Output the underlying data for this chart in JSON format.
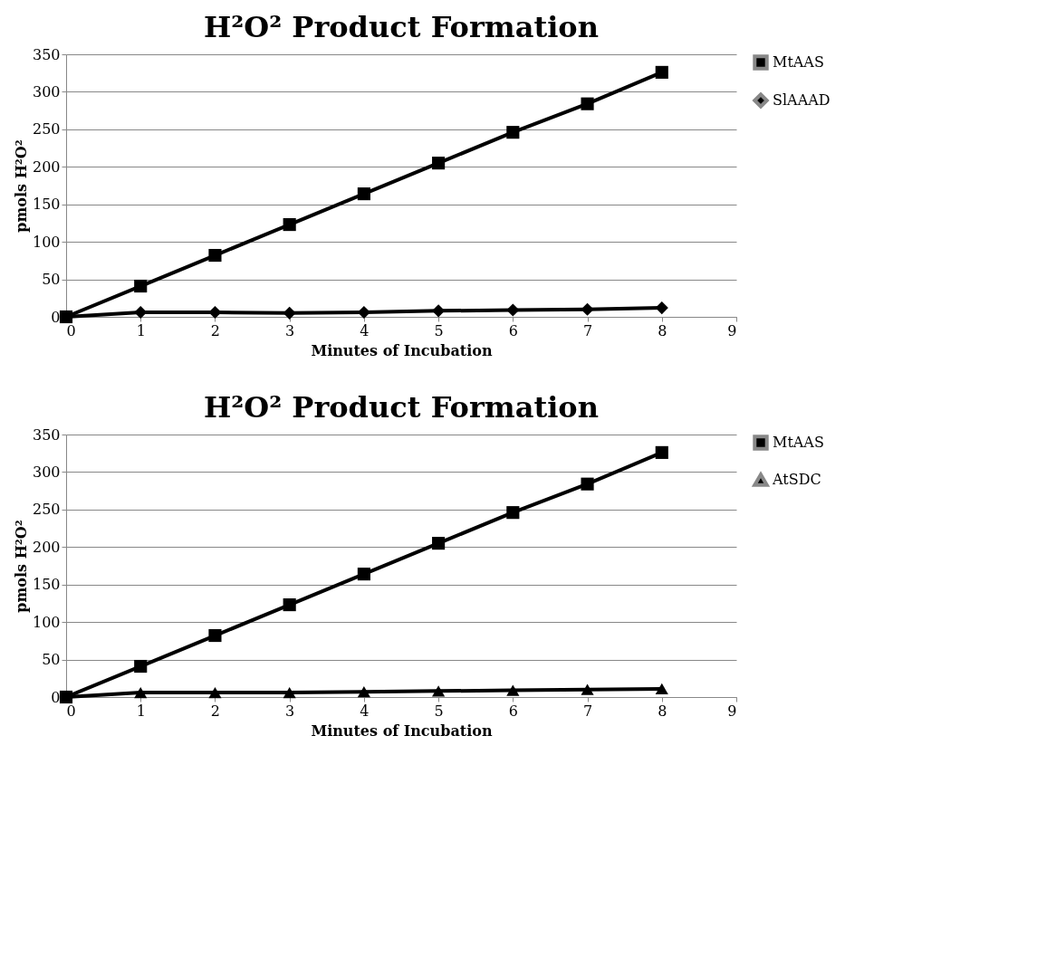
{
  "chart_data": [
    {
      "type": "line",
      "title": "H²O² Product Formation",
      "xlabel": "Minutes of Incubation",
      "ylabel": "pmols H²O²",
      "x": [
        0,
        1,
        2,
        3,
        4,
        5,
        6,
        7,
        8
      ],
      "xlim": [
        0,
        9
      ],
      "xticks": [
        0,
        1,
        2,
        3,
        4,
        5,
        6,
        7,
        8,
        9
      ],
      "ylim": [
        0,
        350
      ],
      "yticks": [
        0,
        50,
        100,
        150,
        200,
        250,
        300,
        350
      ],
      "grid": "y",
      "legend": "right",
      "line_style": "solid",
      "series": [
        {
          "name": "MtAAS",
          "color": "#000000",
          "marker": "square",
          "values": [
            0,
            41,
            82,
            123,
            164,
            205,
            246,
            284,
            326
          ]
        },
        {
          "name": "SlAAAD",
          "color": "#000000",
          "marker": "diamond",
          "values": [
            0,
            6,
            6,
            5,
            6,
            8,
            9,
            10,
            12
          ]
        }
      ]
    },
    {
      "type": "line",
      "title": "H²O² Product Formation",
      "xlabel": "Minutes of Incubation",
      "ylabel": "pmols H²O²",
      "x": [
        0,
        1,
        2,
        3,
        4,
        5,
        6,
        7,
        8
      ],
      "xlim": [
        0,
        9
      ],
      "xticks": [
        0,
        1,
        2,
        3,
        4,
        5,
        6,
        7,
        8,
        9
      ],
      "ylim": [
        0,
        350
      ],
      "yticks": [
        0,
        50,
        100,
        150,
        200,
        250,
        300,
        350
      ],
      "grid": "y",
      "legend": "right",
      "line_style": "solid",
      "series": [
        {
          "name": "MtAAS",
          "color": "#000000",
          "marker": "square",
          "values": [
            0,
            41,
            82,
            123,
            164,
            205,
            246,
            284,
            326
          ]
        },
        {
          "name": "AtSDC",
          "color": "#000000",
          "marker": "triangle",
          "values": [
            0,
            6,
            6,
            6,
            7,
            8,
            9,
            10,
            11
          ]
        }
      ]
    }
  ]
}
